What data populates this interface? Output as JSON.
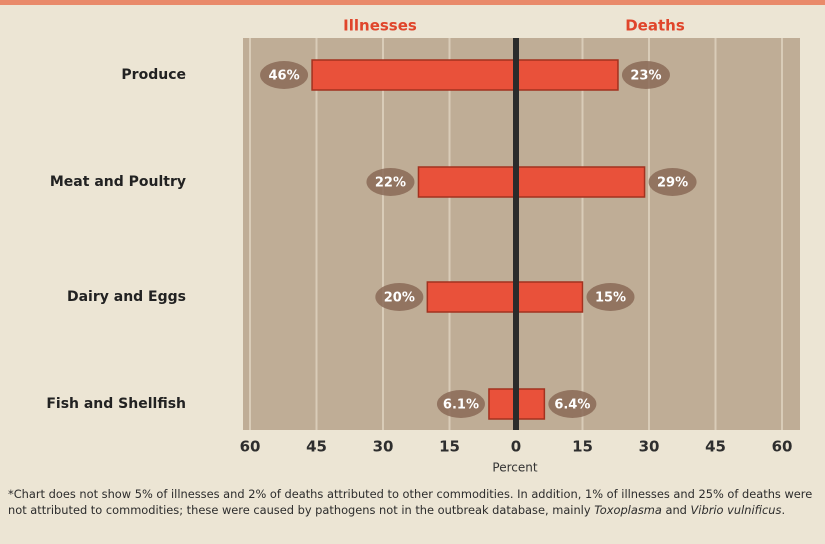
{
  "chart_data": {
    "type": "diverging-bar",
    "categories": [
      "Produce",
      "Meat and Poultry",
      "Dairy and Eggs",
      "Fish and Shellfish"
    ],
    "series": [
      {
        "name": "Illnesses",
        "color": "#e9513a",
        "values": [
          -46,
          -22,
          -20,
          -6.1
        ],
        "value_labels": [
          "46%",
          "22%",
          "20%",
          "6.1%"
        ]
      },
      {
        "name": "Deaths",
        "color": "#e9513a",
        "values": [
          23,
          29,
          15,
          6.4
        ],
        "value_labels": [
          "23%",
          "29%",
          "15%",
          "6.4%"
        ]
      }
    ],
    "xlabel": "Percent",
    "xlim": [
      -60,
      60
    ],
    "xticks": [
      {
        "value": -60,
        "label": "60"
      },
      {
        "value": -45,
        "label": "45"
      },
      {
        "value": -30,
        "label": "30"
      },
      {
        "value": -15,
        "label": "15"
      },
      0,
      15,
      30,
      45,
      60
    ],
    "grid": true,
    "footnote": [
      "*Chart does not show 5% of illnesses and 2% of deaths attributed to other commodities. In addition, 1% of illnesses and 25% of deaths were not attributed to commodities; these were caused by pathogens not in the outbreak database, mainly ",
      "Toxoplasma",
      " and ",
      "Vibrio vulnificus",
      "."
    ]
  }
}
